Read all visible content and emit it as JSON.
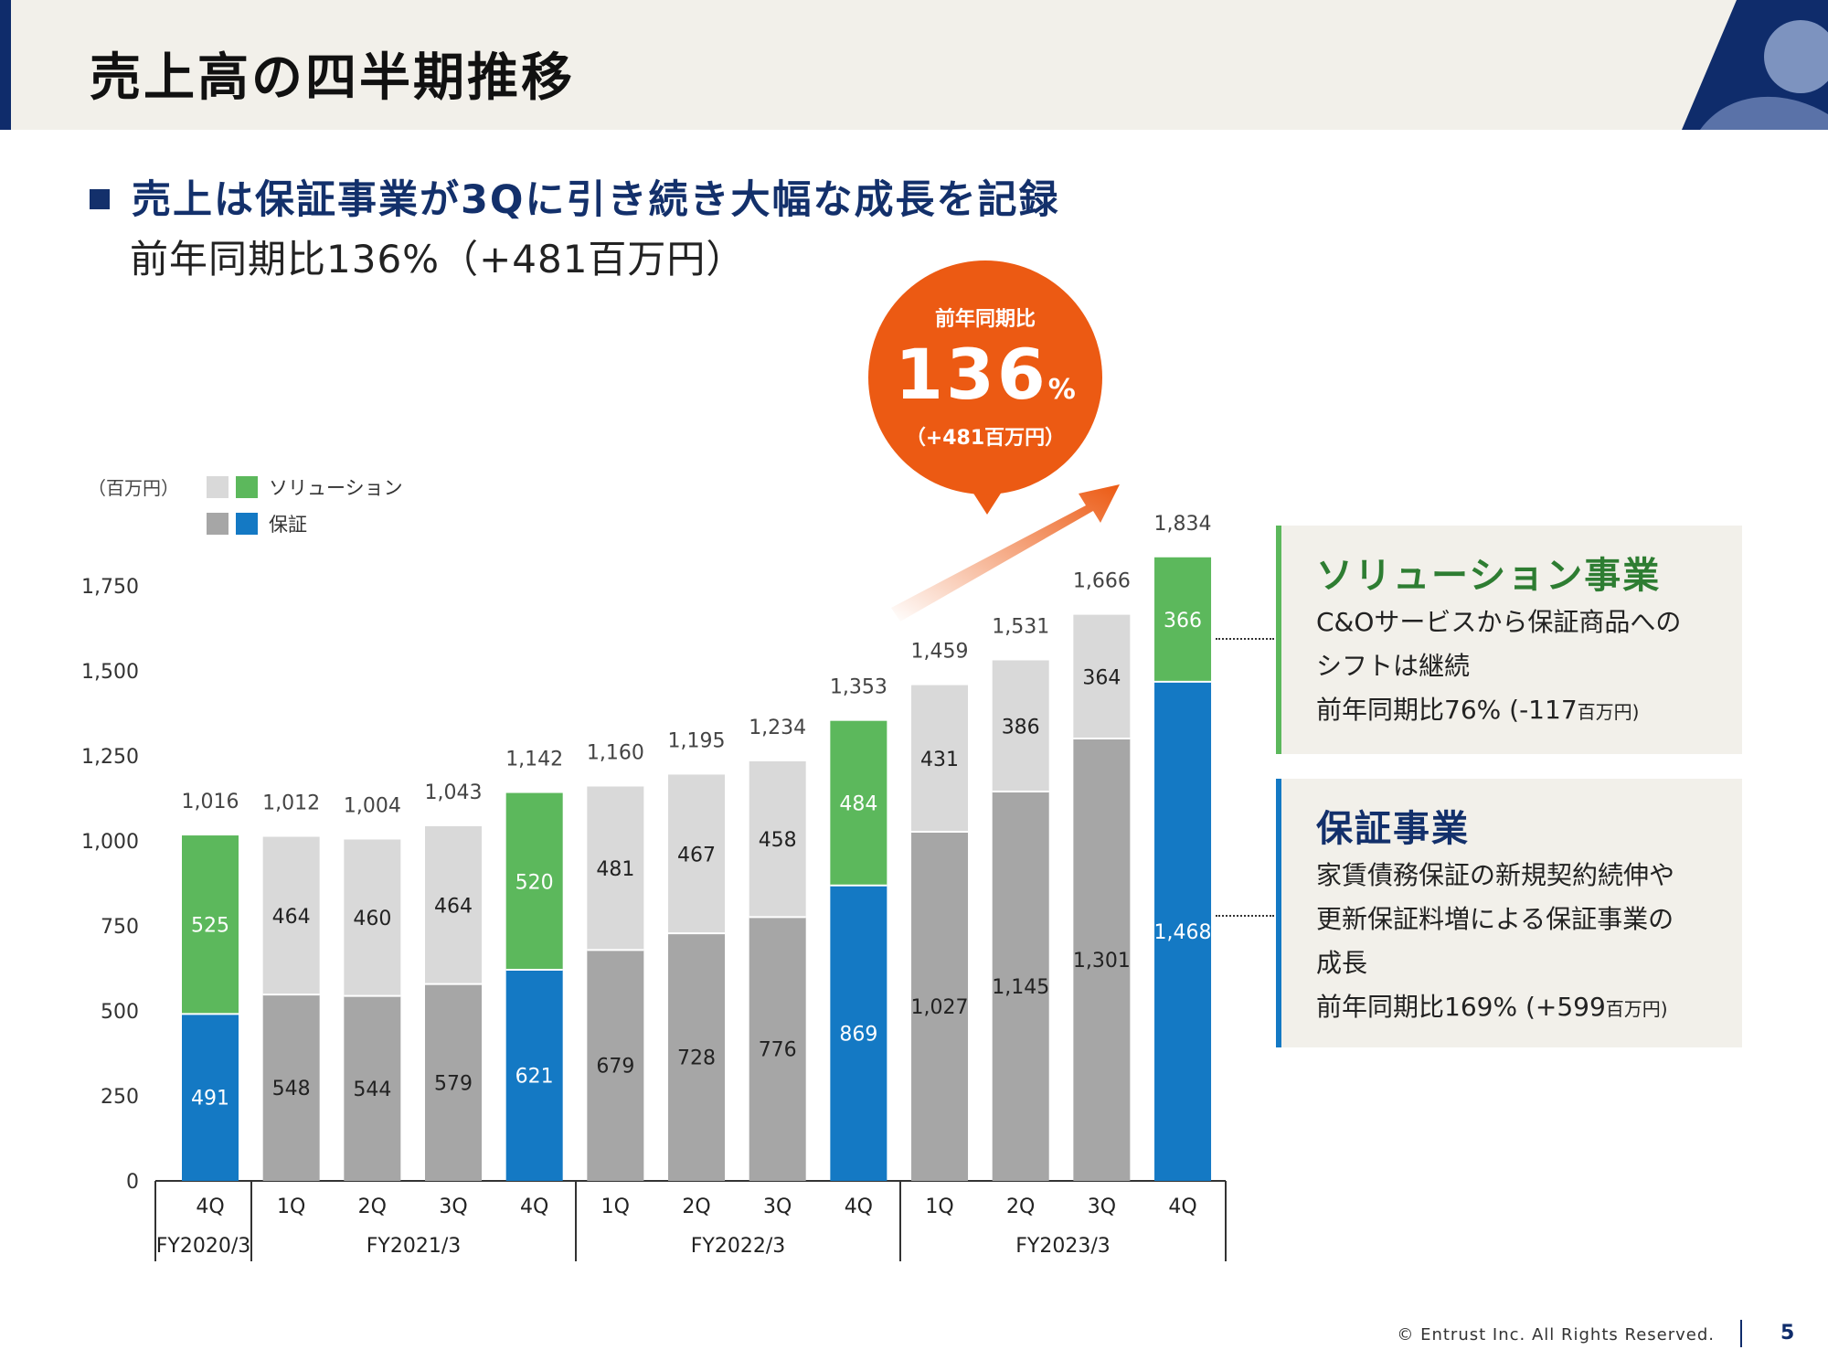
{
  "header": {
    "title": "売上高の四半期推移"
  },
  "headline": {
    "main": "売上は保証事業が3Qに引き続き大幅な成長を記録",
    "sub": "前年同期比136%（+481百万円）"
  },
  "bubble": {
    "label": "前年同期比",
    "value": "136",
    "unit": "%",
    "delta": "（+481百万円）",
    "color": "#ec5a13"
  },
  "legend": {
    "unit": "（百万円）",
    "solution": "ソリューション",
    "guarantee": "保証"
  },
  "colors": {
    "solution_highlight": "#5cb85c",
    "solution_normal": "#d9d9d9",
    "guarantee_highlight": "#1479c4",
    "guarantee_normal": "#a6a6a6",
    "accent_navy": "#13306b",
    "accent_orange": "#ec5a13"
  },
  "chart_data": {
    "type": "bar",
    "stacked": true,
    "categories": [
      "4Q",
      "1Q",
      "2Q",
      "3Q",
      "4Q",
      "1Q",
      "2Q",
      "3Q",
      "4Q",
      "1Q",
      "2Q",
      "3Q",
      "4Q"
    ],
    "fiscal_years": [
      {
        "label": "FY2020/3",
        "start": 0,
        "end": 0
      },
      {
        "label": "FY2021/3",
        "start": 1,
        "end": 4
      },
      {
        "label": "FY2022/3",
        "start": 5,
        "end": 8
      },
      {
        "label": "FY2023/3",
        "start": 9,
        "end": 12
      }
    ],
    "series": [
      {
        "name": "保証",
        "values": [
          491,
          548,
          544,
          579,
          621,
          679,
          728,
          776,
          869,
          1027,
          1145,
          1301,
          1468
        ]
      },
      {
        "name": "ソリューション",
        "values": [
          525,
          464,
          460,
          464,
          520,
          481,
          467,
          458,
          484,
          431,
          386,
          364,
          366
        ]
      }
    ],
    "value_labels": {
      "guarantee": [
        "491",
        "548",
        "544",
        "579",
        "621",
        "679",
        "728",
        "776",
        "869",
        "1,027",
        "1,145",
        "1,301",
        "1,468"
      ],
      "solution": [
        "525",
        "464",
        "460",
        "464",
        "520",
        "481",
        "467",
        "458",
        "484",
        "431",
        "386",
        "364",
        "366"
      ]
    },
    "totals": [
      "1,016",
      "1,012",
      "1,004",
      "1,043",
      "1,142",
      "1,160",
      "1,195",
      "1,234",
      "1,353",
      "1,459",
      "1,531",
      "1,666",
      "1,834"
    ],
    "highlighted": [
      0,
      4,
      8,
      12
    ],
    "yticks": [
      0,
      250,
      500,
      750,
      1000,
      1250,
      1500,
      1750
    ],
    "ytick_labels": [
      "0",
      "250",
      "500",
      "750",
      "1,000",
      "1,250",
      "1,500",
      "1,750"
    ],
    "ylim": [
      0,
      1750
    ],
    "grid": false
  },
  "panels": {
    "solution": {
      "title": "ソリューション事業",
      "line1": "C&Oサービスから保証商品への",
      "line2": "シフトは継続",
      "yoy_main": "前年同期比76%",
      "yoy_delta": "(-117",
      "yoy_unit": "百万円)",
      "color": "#2e7d32"
    },
    "guarantee": {
      "title": "保証事業",
      "line1": "家賃債務保証の新規契約続伸や",
      "line2": "更新保証料増による保証事業の",
      "line3": "成長",
      "yoy_main": "前年同期比169%",
      "yoy_delta": "(+599",
      "yoy_unit": "百万円)",
      "color": "#1479c4"
    }
  },
  "footer": {
    "copyright": "© Entrust Inc. All Rights Reserved.",
    "page": "5"
  }
}
